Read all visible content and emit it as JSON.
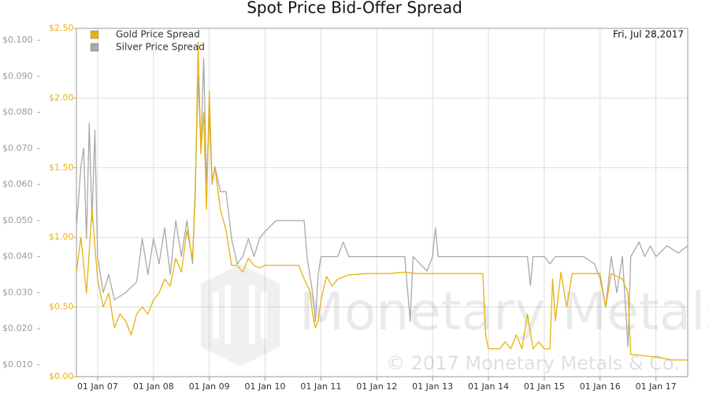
{
  "chart_data": {
    "type": "line",
    "title": "Spot Price Bid-Offer Spread",
    "annotation": "Fri, Jul 28,2017",
    "watermark": "Monetary Metals",
    "copyright": "© 2017 Monetary Metals & Co.",
    "legend": "top-left",
    "grid": true,
    "xlim": [
      2006.62,
      2017.57
    ],
    "xticks": [
      {
        "value": 2007,
        "label": "01 Jan 07"
      },
      {
        "value": 2008,
        "label": "01 Jan 08"
      },
      {
        "value": 2009,
        "label": "01 Jan 09"
      },
      {
        "value": 2010,
        "label": "01 Jan 10"
      },
      {
        "value": 2011,
        "label": "01 Jan 11"
      },
      {
        "value": 2012,
        "label": "01 Jan 12"
      },
      {
        "value": 2013,
        "label": "01 Jan 13"
      },
      {
        "value": 2014,
        "label": "01 Jan 14"
      },
      {
        "value": 2015,
        "label": "01 Jan 15"
      },
      {
        "value": 2016,
        "label": "01 Jan 16"
      },
      {
        "value": 2017,
        "label": "01 Jan 17"
      }
    ],
    "ylim": [
      0,
      2.5
    ],
    "yticks": [
      {
        "value": 0,
        "label": "$0.00"
      },
      {
        "value": 0.5,
        "label": "$0.50"
      },
      {
        "value": 1,
        "label": "$1.00"
      },
      {
        "value": 1.5,
        "label": "$1.50"
      },
      {
        "value": 2,
        "label": "$2.00"
      },
      {
        "value": 2.5,
        "label": "$2.50"
      }
    ],
    "y2lim": [
      0.0067,
      0.1033
    ],
    "y2ticks": [
      {
        "value": 0.01,
        "label": "$0.010"
      },
      {
        "value": 0.02,
        "label": "$0.020"
      },
      {
        "value": 0.03,
        "label": "$0.030"
      },
      {
        "value": 0.04,
        "label": "$0.040"
      },
      {
        "value": 0.05,
        "label": "$0.050"
      },
      {
        "value": 0.06,
        "label": "$0.060"
      },
      {
        "value": 0.07,
        "label": "$0.070"
      },
      {
        "value": 0.08,
        "label": "$0.080"
      },
      {
        "value": 0.09,
        "label": "$0.090"
      },
      {
        "value": 0.1,
        "label": "$0.100"
      }
    ],
    "series": [
      {
        "name": "Silver Price Spread",
        "color": "#a9a9a9",
        "axis": "y2",
        "x": [
          2006.62,
          2006.7,
          2006.75,
          2006.8,
          2006.85,
          2006.9,
          2006.95,
          2007.0,
          2007.1,
          2007.2,
          2007.3,
          2007.5,
          2007.7,
          2007.8,
          2007.9,
          2008.0,
          2008.1,
          2008.2,
          2008.3,
          2008.4,
          2008.5,
          2008.6,
          2008.7,
          2008.75,
          2008.8,
          2008.85,
          2008.9,
          2008.95,
          2009.0,
          2009.05,
          2009.1,
          2009.2,
          2009.3,
          2009.4,
          2009.5,
          2009.6,
          2009.7,
          2009.8,
          2009.9,
          2010.0,
          2010.2,
          2010.5,
          2010.7,
          2010.75,
          2010.8,
          2010.85,
          2010.9,
          2010.95,
          2011.0,
          2011.3,
          2011.4,
          2011.5,
          2012.0,
          2012.5,
          2012.6,
          2012.65,
          2012.9,
          2013.0,
          2013.05,
          2013.1,
          2013.5,
          2014.0,
          2014.5,
          2014.7,
          2014.75,
          2014.8,
          2015.0,
          2015.1,
          2015.2,
          2015.5,
          2015.7,
          2015.9,
          2016.0,
          2016.1,
          2016.2,
          2016.3,
          2016.4,
          2016.5,
          2016.55,
          2016.7,
          2016.8,
          2016.9,
          2017.0,
          2017.2,
          2017.4,
          2017.57
        ],
        "values": [
          0.048,
          0.065,
          0.07,
          0.045,
          0.077,
          0.05,
          0.075,
          0.04,
          0.03,
          0.035,
          0.028,
          0.03,
          0.033,
          0.045,
          0.035,
          0.045,
          0.038,
          0.048,
          0.035,
          0.05,
          0.04,
          0.05,
          0.038,
          0.06,
          0.09,
          0.07,
          0.095,
          0.06,
          0.08,
          0.06,
          0.065,
          0.058,
          0.058,
          0.045,
          0.038,
          0.04,
          0.045,
          0.04,
          0.045,
          0.047,
          0.05,
          0.05,
          0.05,
          0.04,
          0.035,
          0.03,
          0.022,
          0.035,
          0.04,
          0.04,
          0.044,
          0.04,
          0.04,
          0.04,
          0.022,
          0.04,
          0.036,
          0.04,
          0.048,
          0.04,
          0.04,
          0.04,
          0.04,
          0.04,
          0.032,
          0.04,
          0.04,
          0.038,
          0.04,
          0.04,
          0.04,
          0.038,
          0.034,
          0.026,
          0.04,
          0.03,
          0.04,
          0.015,
          0.04,
          0.044,
          0.04,
          0.043,
          0.04,
          0.043,
          0.041,
          0.043
        ]
      },
      {
        "name": "Gold Price Spread",
        "color": "#e8b20e",
        "axis": "y",
        "x": [
          2006.62,
          2006.7,
          2006.8,
          2006.9,
          2007.0,
          2007.1,
          2007.2,
          2007.3,
          2007.4,
          2007.5,
          2007.6,
          2007.7,
          2007.8,
          2007.9,
          2008.0,
          2008.1,
          2008.2,
          2008.3,
          2008.4,
          2008.5,
          2008.6,
          2008.7,
          2008.75,
          2008.8,
          2008.85,
          2008.9,
          2008.95,
          2009.0,
          2009.05,
          2009.1,
          2009.2,
          2009.3,
          2009.4,
          2009.5,
          2009.6,
          2009.7,
          2009.8,
          2009.9,
          2010.0,
          2010.2,
          2010.4,
          2010.6,
          2010.7,
          2010.8,
          2010.85,
          2010.9,
          2010.95,
          2011.0,
          2011.1,
          2011.2,
          2011.3,
          2011.5,
          2011.8,
          2012.2,
          2012.5,
          2012.7,
          2013.0,
          2013.5,
          2013.9,
          2013.95,
          2014.0,
          2014.2,
          2014.3,
          2014.4,
          2014.5,
          2014.6,
          2014.7,
          2014.8,
          2014.9,
          2015.0,
          2015.1,
          2015.15,
          2015.2,
          2015.3,
          2015.4,
          2015.5,
          2015.8,
          2016.0,
          2016.1,
          2016.2,
          2016.4,
          2016.5,
          2016.55,
          2016.8,
          2017.0,
          2017.3,
          2017.57
        ],
        "values": [
          0.75,
          1.0,
          0.6,
          1.2,
          0.7,
          0.5,
          0.6,
          0.35,
          0.45,
          0.4,
          0.3,
          0.45,
          0.5,
          0.45,
          0.55,
          0.6,
          0.7,
          0.65,
          0.85,
          0.75,
          1.05,
          0.85,
          1.3,
          2.4,
          1.6,
          1.9,
          1.2,
          2.05,
          1.4,
          1.5,
          1.2,
          1.05,
          0.8,
          0.8,
          0.75,
          0.85,
          0.8,
          0.78,
          0.8,
          0.8,
          0.8,
          0.8,
          0.7,
          0.62,
          0.45,
          0.35,
          0.4,
          0.55,
          0.72,
          0.65,
          0.7,
          0.73,
          0.74,
          0.74,
          0.75,
          0.74,
          0.74,
          0.74,
          0.74,
          0.3,
          0.2,
          0.2,
          0.25,
          0.2,
          0.3,
          0.2,
          0.45,
          0.2,
          0.25,
          0.2,
          0.2,
          0.7,
          0.4,
          0.75,
          0.5,
          0.74,
          0.74,
          0.74,
          0.5,
          0.74,
          0.7,
          0.6,
          0.16,
          0.15,
          0.14,
          0.12,
          0.12
        ]
      }
    ]
  }
}
